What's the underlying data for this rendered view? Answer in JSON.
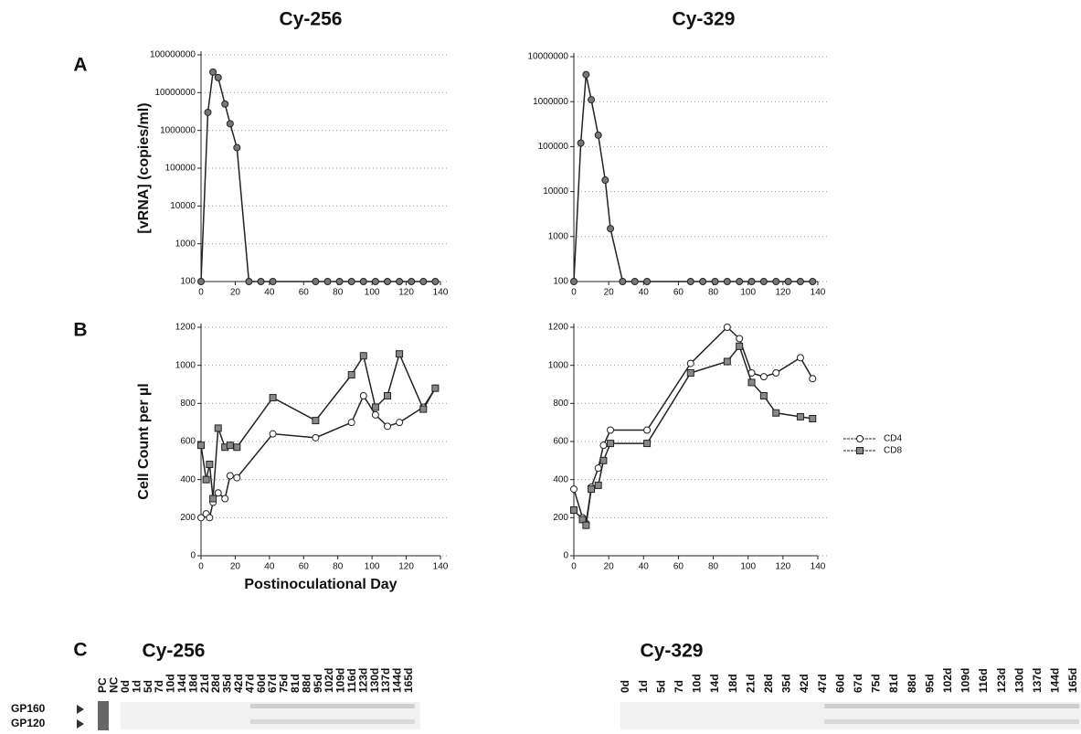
{
  "figure": {
    "columns": [
      "Cy-256",
      "Cy-329"
    ],
    "panels": [
      "A",
      "B"
    ]
  },
  "chart_data": [
    {
      "type": "line",
      "log_scale": true,
      "grid": true,
      "marker": "circle",
      "color": "#777777",
      "y_label": "[vRNA] (copies/ml)",
      "x": [
        0,
        4,
        7,
        10,
        14,
        17,
        21,
        28,
        35,
        42,
        67,
        74,
        81,
        88,
        95,
        102,
        109,
        116,
        123,
        130,
        137
      ],
      "values": [
        100,
        3000000,
        35000000,
        25000000,
        5000000,
        1500000,
        350000,
        100,
        100,
        100,
        100,
        100,
        100,
        100,
        100,
        100,
        100,
        100,
        100,
        100,
        100
      ],
      "xlim": [
        0,
        140
      ],
      "xticks": [
        0,
        20,
        40,
        60,
        80,
        100,
        120,
        140
      ],
      "ylim": [
        100,
        100000000
      ],
      "yticks": [
        100,
        1000,
        10000,
        100000,
        1000000,
        10000000,
        100000000
      ]
    },
    {
      "type": "line",
      "log_scale": true,
      "grid": true,
      "marker": "circle",
      "color": "#777777",
      "x": [
        0,
        4,
        7,
        10,
        14,
        18,
        21,
        28,
        35,
        42,
        67,
        74,
        81,
        88,
        95,
        102,
        109,
        116,
        123,
        130,
        137
      ],
      "values": [
        100,
        120000,
        4000000,
        1100000,
        180000,
        18000,
        1500,
        100,
        100,
        100,
        100,
        100,
        100,
        100,
        100,
        100,
        100,
        100,
        100,
        100,
        100
      ],
      "xlim": [
        0,
        140
      ],
      "xticks": [
        0,
        20,
        40,
        60,
        80,
        100,
        120,
        140
      ],
      "ylim": [
        100,
        10000000
      ],
      "yticks": [
        100,
        1000,
        10000,
        100000,
        1000000,
        10000000
      ]
    },
    {
      "type": "line",
      "grid": true,
      "y_label": "Cell Count per µl",
      "x_label": "Postinoculational Day",
      "x": [
        0,
        3,
        5,
        7,
        10,
        14,
        17,
        21,
        42,
        67,
        88,
        95,
        102,
        109,
        116,
        130,
        137
      ],
      "series": [
        {
          "color": "#ffffff",
          "marker": "circle",
          "values": [
            200,
            220,
            200,
            280,
            330,
            300,
            420,
            410,
            640,
            620,
            700,
            840,
            740,
            680,
            700,
            780,
            880
          ]
        },
        {
          "color": "#888888",
          "marker": "square",
          "values": [
            580,
            400,
            480,
            300,
            670,
            570,
            580,
            570,
            830,
            710,
            950,
            1050,
            780,
            840,
            1060,
            770,
            880
          ]
        }
      ],
      "xlim": [
        0,
        140
      ],
      "xticks": [
        0,
        20,
        40,
        60,
        80,
        100,
        120,
        140
      ],
      "ylim": [
        0,
        1200
      ],
      "yticks": [
        0,
        200,
        400,
        600,
        800,
        1000,
        1200
      ]
    },
    {
      "type": "line",
      "grid": true,
      "legend": "right",
      "x": [
        0,
        5,
        7,
        10,
        14,
        17,
        21,
        42,
        67,
        88,
        95,
        102,
        109,
        116,
        130,
        137
      ],
      "series": [
        {
          "name": "CD4",
          "color": "#ffffff",
          "marker": "circle",
          "values": [
            350,
            200,
            170,
            360,
            460,
            580,
            660,
            660,
            1010,
            1200,
            1140,
            960,
            940,
            960,
            1040,
            930
          ]
        },
        {
          "name": "CD8",
          "color": "#888888",
          "marker": "square",
          "values": [
            240,
            190,
            160,
            350,
            370,
            500,
            590,
            590,
            960,
            1020,
            1100,
            910,
            840,
            750,
            730,
            720
          ]
        }
      ],
      "xlim": [
        0,
        140
      ],
      "xticks": [
        0,
        20,
        40,
        60,
        80,
        100,
        120,
        140
      ],
      "ylim": [
        0,
        1200
      ],
      "yticks": [
        0,
        200,
        400,
        600,
        800,
        1000,
        1200
      ]
    }
  ],
  "blot": {
    "letter": "C",
    "bands": [
      "GP160",
      "GP120"
    ],
    "groups": [
      {
        "title": "Cy-256",
        "lanes": [
          "PC",
          "NC",
          "0d",
          "1d",
          "5d",
          "7d",
          "10d",
          "14d",
          "18d",
          "21d",
          "28d",
          "35d",
          "42d",
          "47d",
          "60d",
          "67d",
          "75d",
          "81d",
          "88d",
          "95d",
          "102d",
          "109d",
          "116d",
          "123d",
          "130d",
          "137d",
          "144d",
          "165d"
        ]
      },
      {
        "title": "Cy-329",
        "lanes": [
          "0d",
          "1d",
          "5d",
          "7d",
          "10d",
          "14d",
          "18d",
          "21d",
          "28d",
          "35d",
          "42d",
          "47d",
          "60d",
          "67d",
          "75d",
          "81d",
          "88d",
          "95d",
          "102d",
          "109d",
          "116d",
          "123d",
          "130d",
          "137d",
          "144d",
          "165d"
        ]
      }
    ]
  }
}
